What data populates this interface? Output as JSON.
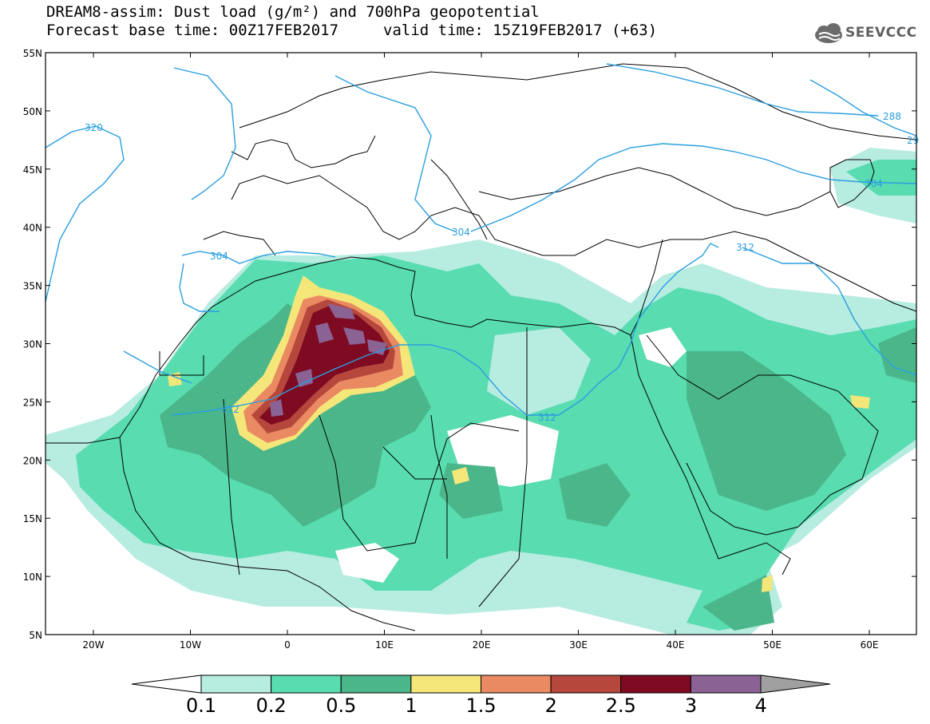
{
  "header": {
    "line1": "DREAM8-assim: Dust load (g/m²) and 700hPa geopotential",
    "line2": "Forecast base time: 00Z17FEB2017",
    "valid": "valid time: 15Z19FEB2017 (+63)",
    "logo": "SEEVCCC"
  },
  "map": {
    "lat_labels": [
      "55N",
      "50N",
      "45N",
      "40N",
      "35N",
      "30N",
      "25N",
      "20N",
      "15N",
      "10N",
      "5N"
    ],
    "lon_labels": [
      "20W",
      "10W",
      "0",
      "10E",
      "20E",
      "30E",
      "40E",
      "50E",
      "60E"
    ],
    "contour_labels": [
      "320",
      "304",
      "312",
      "304",
      "312",
      "312",
      "288",
      "29",
      "304"
    ],
    "contour_color": "#2a9fe0"
  },
  "colorbar": {
    "levels": [
      "0.1",
      "0.2",
      "0.5",
      "1",
      "1.5",
      "2",
      "2.5",
      "3",
      "4"
    ],
    "colors": [
      "#ffffff",
      "#b7ece1",
      "#58dcb0",
      "#4bb68a",
      "#f5e67a",
      "#ea8a62",
      "#b5473c",
      "#7e0b22",
      "#8a6294",
      "#a0a0a0"
    ]
  }
}
